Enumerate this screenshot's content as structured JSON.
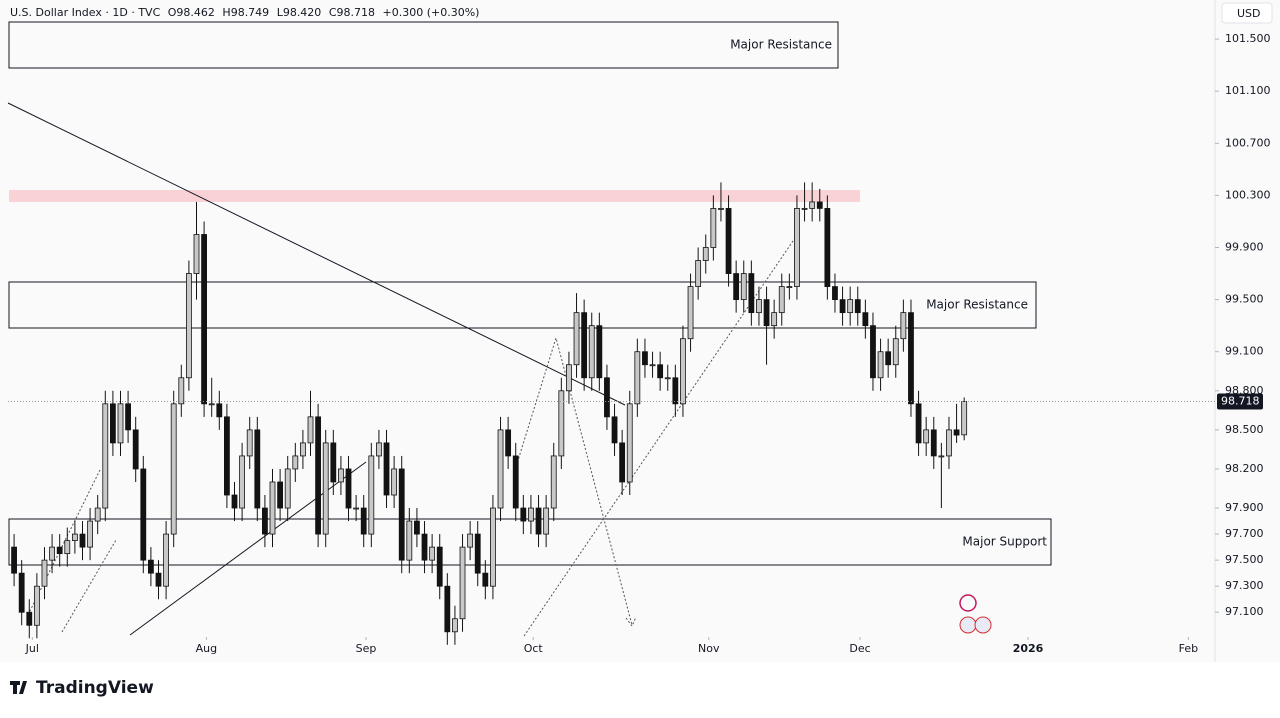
{
  "chart_data": {
    "type": "candlestick",
    "header": {
      "symbol": "U.S. Dollar Index · 1D · TVC",
      "ohlc_labels": [
        "O98.462",
        "H98.749",
        "L98.420",
        "C98.718",
        "+0.300 (+0.30%)"
      ]
    },
    "currency": "USD",
    "last_price_label": "98.718",
    "brand": "TradingView",
    "annotations": [
      "Major Resistance",
      "Major Resistance",
      "Major Support"
    ],
    "up_color": "#c8c8c8",
    "down_color": "#131313",
    "wick_color": "#131313",
    "grid": false,
    "xlim": [
      -0.8,
      158
    ],
    "xticks": [
      {
        "value": 2.4,
        "label": "Jul"
      },
      {
        "value": 25.3,
        "label": "Aug"
      },
      {
        "value": 46.3,
        "label": "Sep"
      },
      {
        "value": 68.3,
        "label": "Oct"
      },
      {
        "value": 91.4,
        "label": "Nov"
      },
      {
        "value": 111.3,
        "label": "Dec"
      },
      {
        "value": 133.4,
        "label": "2026"
      },
      {
        "value": 154.5,
        "label": "Feb"
      }
    ],
    "ylim": [
      96.91,
      101.8
    ],
    "yticks": [
      {
        "value": 97.1,
        "label": "97.100"
      },
      {
        "value": 97.3,
        "label": "97.300"
      },
      {
        "value": 97.5,
        "label": "97.500"
      },
      {
        "value": 97.7,
        "label": "97.700"
      },
      {
        "value": 97.9,
        "label": "97.900"
      },
      {
        "value": 98.2,
        "label": "98.200"
      },
      {
        "value": 98.5,
        "label": "98.500"
      },
      {
        "value": 98.8,
        "label": "98.800"
      },
      {
        "value": 99.1,
        "label": "99.100"
      },
      {
        "value": 99.5,
        "label": "99.500"
      },
      {
        "value": 99.9,
        "label": "99.900"
      },
      {
        "value": 100.3,
        "label": "100.300"
      },
      {
        "value": 100.7,
        "label": "100.700"
      },
      {
        "value": 101.1,
        "label": "101.100"
      },
      {
        "value": 101.5,
        "label": "101.500"
      }
    ],
    "ohlc": [
      [
        97.6,
        97.7,
        97.3,
        97.4
      ],
      [
        97.4,
        97.5,
        97.0,
        97.1
      ],
      [
        97.1,
        97.2,
        96.9,
        97.0
      ],
      [
        97.0,
        97.4,
        96.9,
        97.3
      ],
      [
        97.3,
        97.6,
        97.2,
        97.5
      ],
      [
        97.5,
        97.7,
        97.4,
        97.6
      ],
      [
        97.6,
        97.7,
        97.45,
        97.55
      ],
      [
        97.55,
        97.75,
        97.45,
        97.65
      ],
      [
        97.65,
        97.8,
        97.55,
        97.7
      ],
      [
        97.7,
        97.8,
        97.5,
        97.6
      ],
      [
        97.6,
        97.9,
        97.5,
        97.8
      ],
      [
        97.8,
        98.0,
        97.7,
        97.9
      ],
      [
        97.9,
        98.8,
        97.8,
        98.7
      ],
      [
        98.7,
        98.8,
        98.3,
        98.4
      ],
      [
        98.4,
        98.8,
        98.3,
        98.7
      ],
      [
        98.7,
        98.8,
        98.4,
        98.5
      ],
      [
        98.5,
        98.6,
        98.1,
        98.2
      ],
      [
        98.2,
        98.3,
        97.4,
        97.5
      ],
      [
        97.5,
        97.6,
        97.3,
        97.4
      ],
      [
        97.4,
        97.5,
        97.2,
        97.3
      ],
      [
        97.3,
        97.8,
        97.2,
        97.7
      ],
      [
        97.7,
        98.8,
        97.6,
        98.7
      ],
      [
        98.7,
        99.0,
        98.6,
        98.9
      ],
      [
        98.9,
        99.8,
        98.8,
        99.7
      ],
      [
        99.7,
        100.25,
        99.5,
        100.0
      ],
      [
        100.0,
        100.1,
        98.6,
        98.7
      ],
      [
        98.7,
        98.9,
        98.6,
        98.7
      ],
      [
        98.7,
        98.8,
        98.5,
        98.6
      ],
      [
        98.6,
        98.7,
        97.9,
        98.0
      ],
      [
        98.0,
        98.1,
        97.8,
        97.9
      ],
      [
        97.9,
        98.4,
        97.8,
        98.3
      ],
      [
        98.3,
        98.6,
        98.2,
        98.5
      ],
      [
        98.5,
        98.6,
        97.8,
        97.9
      ],
      [
        97.9,
        98.0,
        97.6,
        97.7
      ],
      [
        97.7,
        98.2,
        97.6,
        98.1
      ],
      [
        98.1,
        98.2,
        97.8,
        97.9
      ],
      [
        97.9,
        98.3,
        97.8,
        98.2
      ],
      [
        98.2,
        98.4,
        98.1,
        98.3
      ],
      [
        98.3,
        98.5,
        98.2,
        98.4
      ],
      [
        98.4,
        98.8,
        98.3,
        98.6
      ],
      [
        98.6,
        98.7,
        97.6,
        97.7
      ],
      [
        97.7,
        98.5,
        97.6,
        98.4
      ],
      [
        98.4,
        98.5,
        98.0,
        98.1
      ],
      [
        98.1,
        98.3,
        98.0,
        98.2
      ],
      [
        98.2,
        98.3,
        97.8,
        97.9
      ],
      [
        97.9,
        98.0,
        97.8,
        97.9
      ],
      [
        97.9,
        98.0,
        97.6,
        97.7
      ],
      [
        97.7,
        98.4,
        97.6,
        98.3
      ],
      [
        98.3,
        98.5,
        98.2,
        98.4
      ],
      [
        98.4,
        98.5,
        97.9,
        98.0
      ],
      [
        98.0,
        98.3,
        97.9,
        98.2
      ],
      [
        98.2,
        98.3,
        97.4,
        97.5
      ],
      [
        97.5,
        97.9,
        97.4,
        97.8
      ],
      [
        97.8,
        97.9,
        97.6,
        97.7
      ],
      [
        97.7,
        97.8,
        97.4,
        97.5
      ],
      [
        97.5,
        97.7,
        97.4,
        97.6
      ],
      [
        97.6,
        97.7,
        97.2,
        97.3
      ],
      [
        97.3,
        97.4,
        96.85,
        96.95
      ],
      [
        96.95,
        97.15,
        96.85,
        97.05
      ],
      [
        97.05,
        97.7,
        96.95,
        97.6
      ],
      [
        97.6,
        97.8,
        97.5,
        97.7
      ],
      [
        97.7,
        97.8,
        97.3,
        97.4
      ],
      [
        97.4,
        97.5,
        97.2,
        97.3
      ],
      [
        97.3,
        98.0,
        97.2,
        97.9
      ],
      [
        97.9,
        98.6,
        97.8,
        98.5
      ],
      [
        98.5,
        98.6,
        98.2,
        98.3
      ],
      [
        98.3,
        98.4,
        97.8,
        97.9
      ],
      [
        97.9,
        98.0,
        97.7,
        97.8
      ],
      [
        97.8,
        98.0,
        97.7,
        97.9
      ],
      [
        97.9,
        98.0,
        97.6,
        97.7
      ],
      [
        97.7,
        98.0,
        97.6,
        97.9
      ],
      [
        97.9,
        98.4,
        97.8,
        98.3
      ],
      [
        98.3,
        98.9,
        98.2,
        98.8
      ],
      [
        98.8,
        99.1,
        98.7,
        99.0
      ],
      [
        99.0,
        99.55,
        98.9,
        99.4
      ],
      [
        99.4,
        99.5,
        98.8,
        98.9
      ],
      [
        98.9,
        99.4,
        98.8,
        99.3
      ],
      [
        99.3,
        99.4,
        98.8,
        98.9
      ],
      [
        98.9,
        99.0,
        98.5,
        98.6
      ],
      [
        98.6,
        98.7,
        98.3,
        98.4
      ],
      [
        98.4,
        98.5,
        98.0,
        98.1
      ],
      [
        98.1,
        98.8,
        98.0,
        98.7
      ],
      [
        98.7,
        99.2,
        98.6,
        99.1
      ],
      [
        99.1,
        99.2,
        98.9,
        99.0
      ],
      [
        99.0,
        99.1,
        98.9,
        99.0
      ],
      [
        99.0,
        99.1,
        98.8,
        98.9
      ],
      [
        98.9,
        99.0,
        98.8,
        98.9
      ],
      [
        98.9,
        99.0,
        98.6,
        98.7
      ],
      [
        98.7,
        99.3,
        98.6,
        99.2
      ],
      [
        99.2,
        99.7,
        99.1,
        99.6
      ],
      [
        99.6,
        99.9,
        99.5,
        99.8
      ],
      [
        99.8,
        100.0,
        99.7,
        99.9
      ],
      [
        99.9,
        100.3,
        99.8,
        100.2
      ],
      [
        100.2,
        100.4,
        100.1,
        100.2
      ],
      [
        100.2,
        100.3,
        99.6,
        99.7
      ],
      [
        99.7,
        99.8,
        99.4,
        99.5
      ],
      [
        99.5,
        99.8,
        99.4,
        99.7
      ],
      [
        99.7,
        99.8,
        99.3,
        99.4
      ],
      [
        99.4,
        99.6,
        99.3,
        99.5
      ],
      [
        99.5,
        99.6,
        99.0,
        99.3
      ],
      [
        99.3,
        99.5,
        99.2,
        99.4
      ],
      [
        99.4,
        99.7,
        99.3,
        99.6
      ],
      [
        99.6,
        99.7,
        99.5,
        99.6
      ],
      [
        99.6,
        100.3,
        99.5,
        100.2
      ],
      [
        100.2,
        100.4,
        100.1,
        100.2
      ],
      [
        100.2,
        100.4,
        100.1,
        100.25
      ],
      [
        100.25,
        100.35,
        100.1,
        100.2
      ],
      [
        100.2,
        100.3,
        99.5,
        99.6
      ],
      [
        99.6,
        99.7,
        99.4,
        99.5
      ],
      [
        99.5,
        99.6,
        99.3,
        99.4
      ],
      [
        99.4,
        99.6,
        99.3,
        99.5
      ],
      [
        99.5,
        99.6,
        99.3,
        99.4
      ],
      [
        99.4,
        99.5,
        99.2,
        99.3
      ],
      [
        99.3,
        99.4,
        98.8,
        98.9
      ],
      [
        98.9,
        99.2,
        98.8,
        99.1
      ],
      [
        99.1,
        99.2,
        98.9,
        99.0
      ],
      [
        99.0,
        99.3,
        98.9,
        99.2
      ],
      [
        99.2,
        99.5,
        99.1,
        99.4
      ],
      [
        99.4,
        99.5,
        98.6,
        98.7
      ],
      [
        98.7,
        98.8,
        98.3,
        98.4
      ],
      [
        98.4,
        98.6,
        98.3,
        98.5
      ],
      [
        98.5,
        98.6,
        98.2,
        98.3
      ],
      [
        98.3,
        98.4,
        97.9,
        98.3
      ],
      [
        98.3,
        98.6,
        98.2,
        98.5
      ],
      [
        98.5,
        98.7,
        98.4,
        98.46
      ],
      [
        98.462,
        98.749,
        98.42,
        98.718
      ]
    ]
  }
}
